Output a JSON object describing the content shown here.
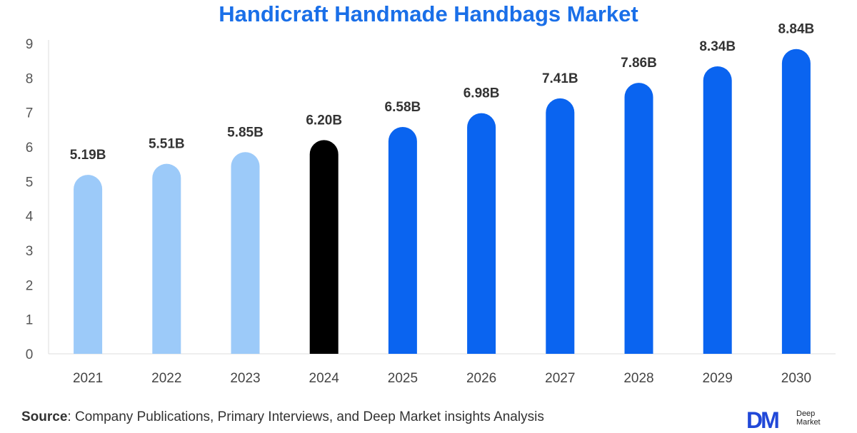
{
  "chart_data": {
    "type": "bar",
    "title": "Handicraft Handmade Handbags Market",
    "categories": [
      "2021",
      "2022",
      "2023",
      "2024",
      "2025",
      "2026",
      "2027",
      "2028",
      "2029",
      "2030"
    ],
    "values": [
      5.19,
      5.51,
      5.85,
      6.2,
      6.58,
      6.98,
      7.41,
      7.86,
      8.34,
      8.84
    ],
    "data_labels": [
      "5.19B",
      "5.51B",
      "5.85B",
      "6.20B",
      "6.58B",
      "6.98B",
      "7.41B",
      "7.86B",
      "8.34B",
      "8.84B"
    ],
    "yticks": [
      "0",
      "1",
      "2",
      "3",
      "4",
      "5",
      "6",
      "7",
      "8",
      "9"
    ],
    "ylim": [
      0,
      9
    ],
    "xlabel": "",
    "ylabel": "",
    "grid": false,
    "bar_colors": [
      "#9ccaf9",
      "#9ccaf9",
      "#9ccaf9",
      "#000000",
      "#0a64f0",
      "#0a64f0",
      "#0a64f0",
      "#0a64f0",
      "#0a64f0",
      "#0a64f0"
    ],
    "title_color": "#1a6fe8"
  },
  "source": {
    "label": "Source",
    "text": ": Company Publications, Primary Interviews, and Deep Market insights Analysis"
  },
  "logo": {
    "mark": "DM",
    "line1": "Deep",
    "line2": "Market"
  }
}
